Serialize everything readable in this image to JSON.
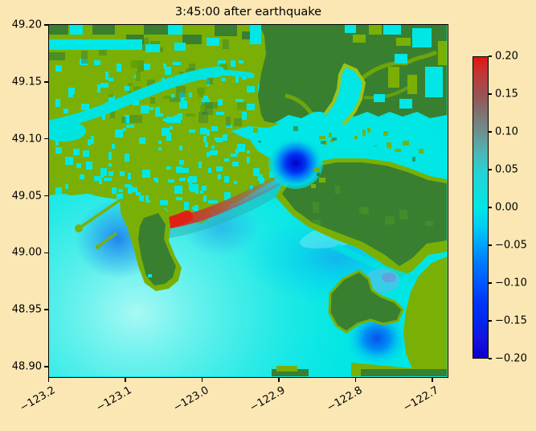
{
  "title": "3:45:00 after earthquake",
  "chart_data": {
    "type": "heatmap",
    "title": "3:45:00 after earthquake",
    "xlabel": "",
    "ylabel": "",
    "grid": false,
    "x_tick_labels": [
      "−123.2",
      "−123.1",
      "−123.0",
      "−122.9",
      "−122.8",
      "−122.7"
    ],
    "y_tick_labels": [
      "49.20",
      "49.15",
      "49.10",
      "49.05",
      "49.00",
      "48.95",
      "48.90"
    ],
    "xlim": [
      -123.2,
      -122.68
    ],
    "ylim": [
      48.89,
      49.2
    ],
    "colorbar": {
      "position": "right",
      "vmin": -0.2,
      "vmax": 0.2,
      "tick_labels": [
        "0.20",
        "0.15",
        "0.10",
        "0.05",
        "0.00",
        "−0.05",
        "−0.10",
        "−0.15",
        "−0.20"
      ],
      "colormap_stops": [
        {
          "value": 0.2,
          "color": "#E31410"
        },
        {
          "value": 0.15,
          "color": "#9A5252"
        },
        {
          "value": 0.1,
          "color": "#6E8F8F"
        },
        {
          "value": 0.05,
          "color": "#35C2C0"
        },
        {
          "value": 0.0,
          "color": "#00E7E6"
        },
        {
          "value": -0.05,
          "color": "#00A2FA"
        },
        {
          "value": -0.1,
          "color": "#0058FF"
        },
        {
          "value": -0.15,
          "color": "#0028F0"
        },
        {
          "value": -0.2,
          "color": "#0B00D0"
        }
      ]
    },
    "features": [
      {
        "name": "positive wave crest (red arc along coast)",
        "approx_lon": -123.05,
        "approx_lat": 49.03,
        "value": "+0.15 to +0.20"
      },
      {
        "name": "strong negative displacement bay (north-central)",
        "approx_lon": -122.92,
        "approx_lat": 49.08,
        "value": "-0.15 to -0.20"
      },
      {
        "name": "negative displacement bay (south-east)",
        "approx_lon": -122.78,
        "approx_lat": 48.93,
        "value": "-0.05 to -0.10"
      },
      {
        "name": "negative displacement west of peninsula",
        "approx_lon": -123.14,
        "approx_lat": 49.01,
        "value": "-0.05"
      },
      {
        "name": "open water (strait)",
        "value": "~0.00"
      },
      {
        "name": "lowland with flooded patches",
        "rendering": "olive-green with cyan speckles"
      },
      {
        "name": "upland / mountains",
        "rendering": "dark green"
      }
    ]
  },
  "colors": {
    "figure_background": "#FAE7B4",
    "land_low": "#7AB005",
    "land_high": "#388030",
    "water_zero": "#00E7E6",
    "wave_positive": "#E31410",
    "wave_negative": "#0B00D0",
    "axes_spine": "#000000",
    "text": "#000000"
  }
}
